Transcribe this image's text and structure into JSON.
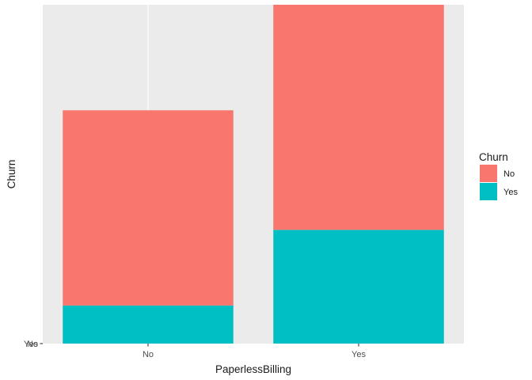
{
  "chart_data": {
    "type": "bar",
    "stacked": true,
    "xlabel": "PaperlessBilling",
    "ylabel": "Churn",
    "categories": [
      "No",
      "Yes"
    ],
    "y_ticks": [
      "No",
      "Yes"
    ],
    "series": [
      {
        "name": "Yes",
        "color": "#00BFC4",
        "values": [
          469,
          1400
        ]
      },
      {
        "name": "No",
        "color": "#F8766D",
        "values": [
          2403,
          2771
        ]
      }
    ],
    "ylim": [
      0,
      4171
    ],
    "grid": true,
    "legend": {
      "title": "Churn",
      "position": "right"
    }
  }
}
